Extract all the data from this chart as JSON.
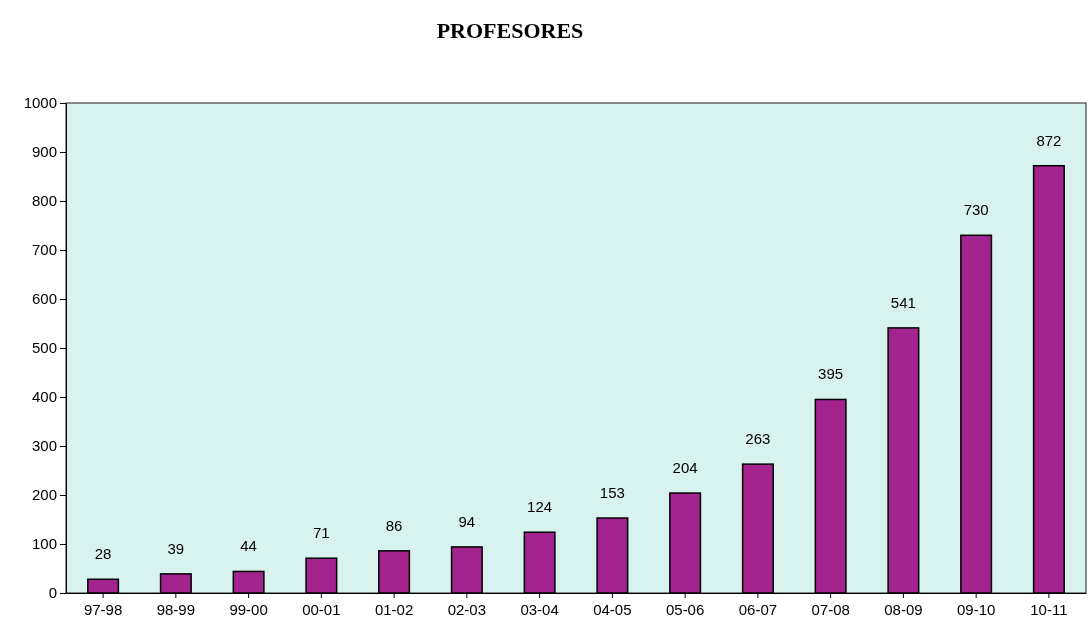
{
  "chart_data": {
    "type": "bar",
    "title": "PROFESORES",
    "categories": [
      "97-98",
      "98-99",
      "99-00",
      "00-01",
      "01-02",
      "02-03",
      "03-04",
      "04-05",
      "05-06",
      "06-07",
      "07-08",
      "08-09",
      "09-10",
      "10-11"
    ],
    "values": [
      28,
      39,
      44,
      71,
      86,
      94,
      124,
      153,
      204,
      263,
      395,
      541,
      730,
      872
    ],
    "color": "#a3238f",
    "ylim": [
      0,
      1000
    ],
    "yticks": [
      0,
      100,
      200,
      300,
      400,
      500,
      600,
      700,
      800,
      900,
      1000
    ],
    "data_labels": true,
    "grid": false
  }
}
